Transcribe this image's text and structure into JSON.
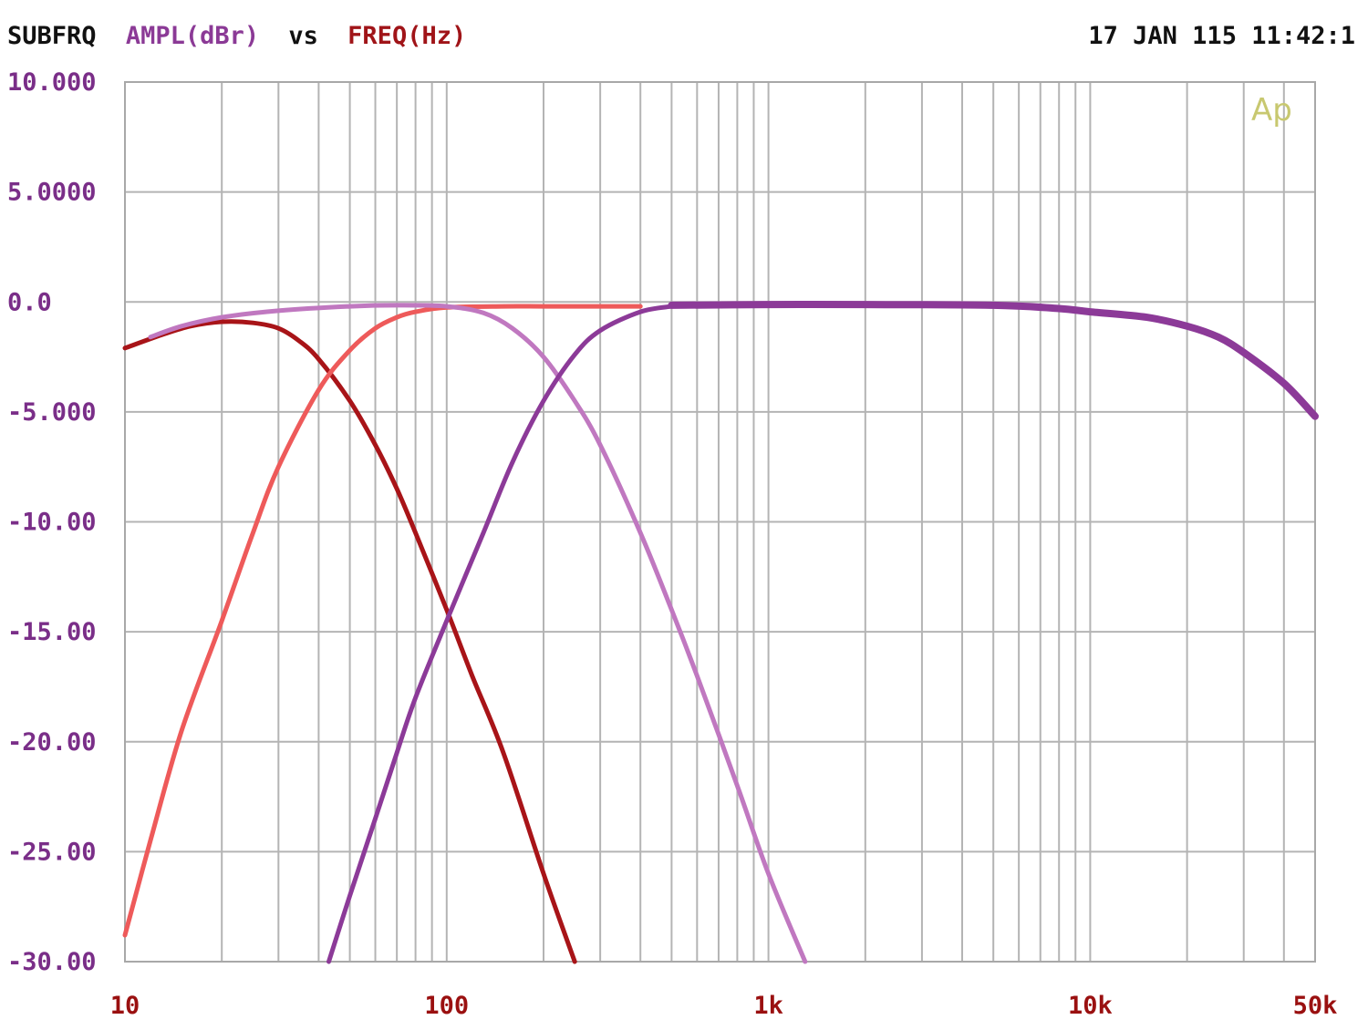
{
  "header": {
    "prefix": "SUBFRQ",
    "ylabel": "AMPL(dBr)",
    "vs": "vs",
    "xlabel": "FREQ(Hz)",
    "timestamp": "17 JAN 115 11:42:1"
  },
  "logo_text": "Ap",
  "colors": {
    "background": "#ffffff",
    "grid": "#b4b4b4",
    "frame": "#a8a8a8",
    "header_black": "#111111",
    "ylabel_color": "#8b3a96",
    "xlabel_color": "#a01418",
    "ytick_color": "#7a2e88",
    "xtick_color": "#9a1010",
    "logo_color": "#c8c870"
  },
  "chart_data": {
    "type": "line",
    "title": "",
    "xlabel": "FREQ(Hz)",
    "ylabel": "AMPL(dBr)",
    "x_scale": "log",
    "xlim": [
      10,
      50000
    ],
    "ylim": [
      -30,
      10
    ],
    "grid": true,
    "x_tick_labels": [
      {
        "value": 10,
        "label": "10"
      },
      {
        "value": 100,
        "label": "100"
      },
      {
        "value": 1000,
        "label": "1k"
      },
      {
        "value": 10000,
        "label": "10k"
      },
      {
        "value": 50000,
        "label": "50k"
      }
    ],
    "y_tick_labels": [
      {
        "value": 10,
        "label": "10.000"
      },
      {
        "value": 5,
        "label": "5.0000"
      },
      {
        "value": 0,
        "label": "0.0"
      },
      {
        "value": -5,
        "label": "-5.000"
      },
      {
        "value": -10,
        "label": "-10.00"
      },
      {
        "value": -15,
        "label": "-15.00"
      },
      {
        "value": -20,
        "label": "-20.00"
      },
      {
        "value": -25,
        "label": "-25.00"
      },
      {
        "value": -30,
        "label": "-30.00"
      }
    ],
    "series": [
      {
        "color": "#a81418",
        "width": 5,
        "x": [
          10,
          13,
          16,
          20,
          25,
          30,
          35,
          40,
          50,
          60,
          70,
          80,
          100,
          120,
          150,
          200,
          250
        ],
        "y": [
          -2.1,
          -1.5,
          -1.1,
          -0.9,
          -0.95,
          -1.2,
          -1.8,
          -2.6,
          -4.5,
          -6.5,
          -8.5,
          -10.5,
          -14,
          -17,
          -20.5,
          -26,
          -30
        ]
      },
      {
        "color": "#ee5a5a",
        "width": 5,
        "x": [
          10,
          12,
          15,
          20,
          25,
          30,
          40,
          50,
          60,
          70,
          80,
          100,
          150,
          200,
          300,
          400
        ],
        "y": [
          -28.8,
          -24.5,
          -19.5,
          -14.5,
          -10.5,
          -7.5,
          -4,
          -2.2,
          -1.2,
          -0.7,
          -0.45,
          -0.25,
          -0.2,
          -0.2,
          -0.2,
          -0.2
        ]
      },
      {
        "color": "#c078c0",
        "width": 5,
        "x": [
          12,
          15,
          20,
          30,
          50,
          70,
          100,
          130,
          160,
          200,
          250,
          300,
          400,
          500,
          600,
          800,
          1000,
          1300
        ],
        "y": [
          -1.6,
          -1.1,
          -0.7,
          -0.4,
          -0.2,
          -0.15,
          -0.2,
          -0.5,
          -1.2,
          -2.5,
          -4.5,
          -6.5,
          -10.5,
          -14,
          -17,
          -22,
          -26,
          -30
        ]
      },
      {
        "color": "#8c3a98",
        "width": 5,
        "x": [
          43,
          50,
          60,
          70,
          80,
          100,
          130,
          160,
          200,
          250,
          300,
          400,
          500
        ],
        "y": [
          -30,
          -27,
          -23.5,
          -20.5,
          -18,
          -14.5,
          -10.5,
          -7.3,
          -4.5,
          -2.4,
          -1.3,
          -0.45,
          -0.2
        ]
      },
      {
        "color": "#8c3a98",
        "width": 8,
        "x": [
          500,
          1000,
          2000,
          5000,
          8000,
          10000,
          15000,
          20000,
          25000,
          30000,
          40000,
          50000
        ],
        "y": [
          -0.15,
          -0.12,
          -0.12,
          -0.15,
          -0.3,
          -0.45,
          -0.7,
          -1.1,
          -1.6,
          -2.3,
          -3.7,
          -5.2
        ]
      }
    ]
  }
}
